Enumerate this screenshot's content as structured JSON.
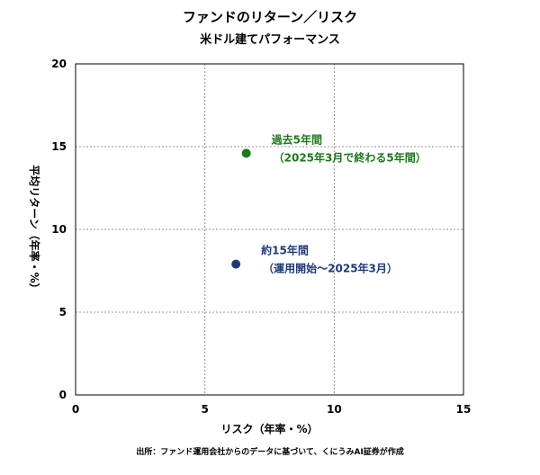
{
  "chart_data": {
    "type": "scatter",
    "title": "ファンドのリターン／リスク",
    "subtitle": "米ドル建てパフォーマンス",
    "xlabel": "リスク（年率・%）",
    "ylabel": "平均リターン（年率・%）",
    "xlim": [
      0,
      15
    ],
    "ylim": [
      0,
      20
    ],
    "xticks": [
      0,
      5,
      10,
      15
    ],
    "yticks": [
      0,
      5,
      10,
      15,
      20
    ],
    "grid": true,
    "points": [
      {
        "x": 6.6,
        "y": 14.6,
        "color": "#1a7a1a",
        "label_line1": "過去5年間",
        "label_line2": "（2025年3月で終わる5年間）"
      },
      {
        "x": 6.2,
        "y": 7.9,
        "color": "#1f3a7a",
        "label_line1": "約15年間",
        "label_line2": "（運用開始～2025年3月）"
      }
    ],
    "source": "出所：ファンド運用会社からのデータに基づいて、くにうみAI証券が作成"
  }
}
